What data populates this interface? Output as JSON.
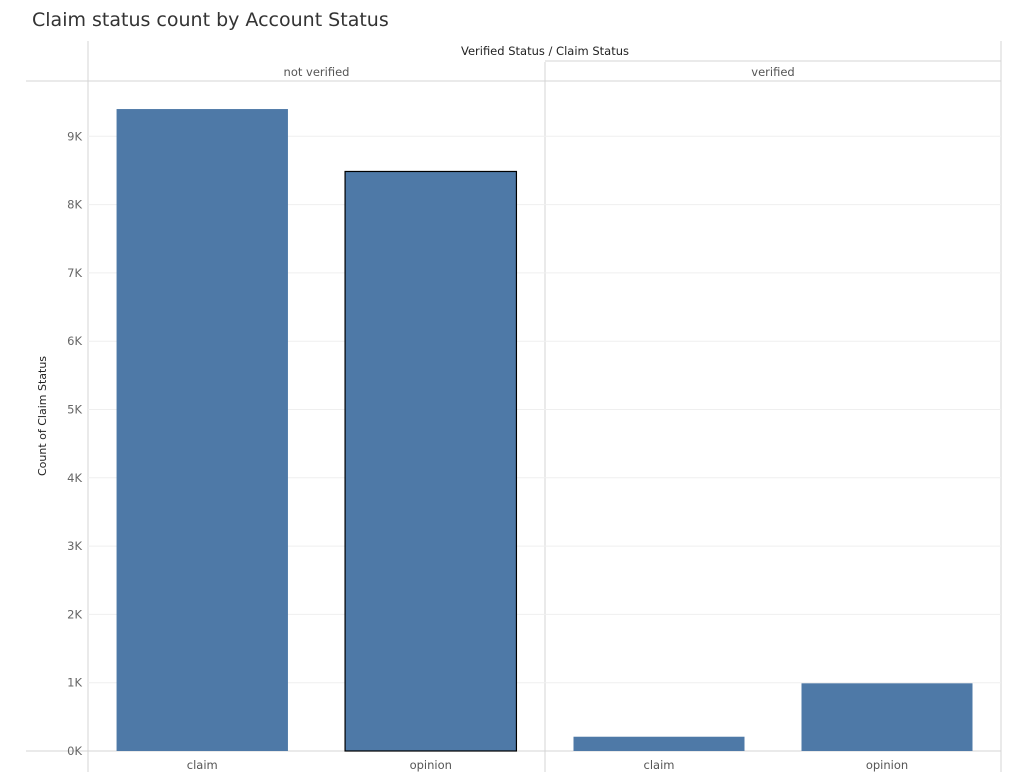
{
  "chart_data": {
    "type": "bar",
    "title": "Claim status count by Account Status",
    "column_header": "Verified Status / Claim Status",
    "ylabel": "Count of Claim Status",
    "ylim": [
      0,
      10000
    ],
    "yticks": [
      "0K",
      "1K",
      "2K",
      "3K",
      "4K",
      "5K",
      "6K",
      "7K",
      "8K",
      "9K"
    ],
    "grid": true,
    "color": "#4e79a7",
    "groups": [
      {
        "label": "not verified",
        "bars": [
          {
            "category": "claim",
            "value": 9399
          },
          {
            "category": "opinion",
            "value": 8485,
            "highlighted": true
          }
        ]
      },
      {
        "label": "verified",
        "bars": [
          {
            "category": "claim",
            "value": 209
          },
          {
            "category": "opinion",
            "value": 991
          }
        ]
      }
    ]
  }
}
